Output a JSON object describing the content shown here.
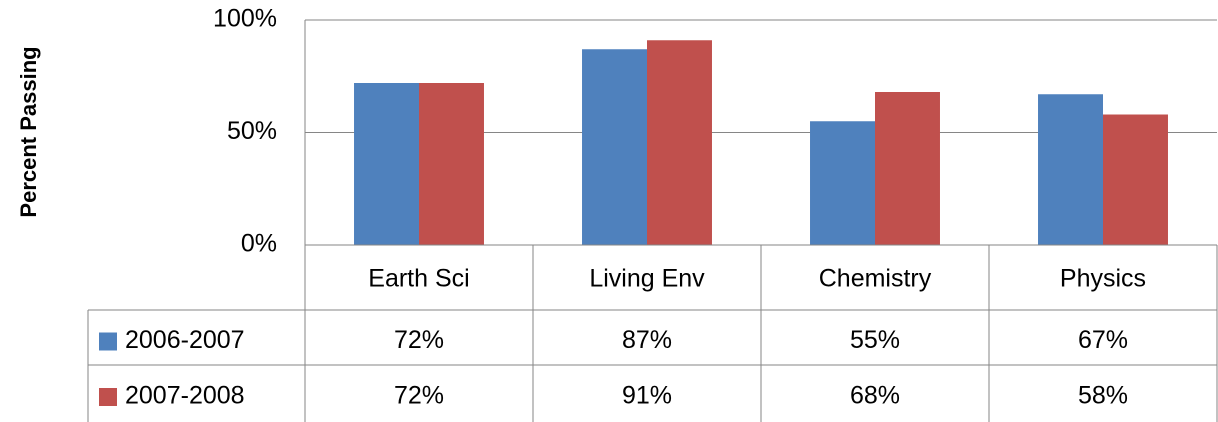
{
  "chart_data": {
    "type": "bar",
    "y_axis_label": "Percent Passing",
    "categories": [
      "Earth Sci",
      "Living Env",
      "Chemistry",
      "Physics"
    ],
    "series": [
      {
        "name": "2006-2007",
        "color": "#4f81bd",
        "values": [
          72,
          87,
          55,
          67
        ],
        "value_labels": [
          "72%",
          "87%",
          "55%",
          "67%"
        ]
      },
      {
        "name": "2007-2008",
        "color": "#c0504d",
        "values": [
          72,
          91,
          68,
          58
        ],
        "value_labels": [
          "72%",
          "91%",
          "68%",
          "58%"
        ]
      }
    ],
    "ylim": [
      0,
      100
    ],
    "yticks": [
      {
        "value": 0,
        "label": "0%"
      },
      {
        "value": 50,
        "label": "50%"
      },
      {
        "value": 100,
        "label": "100%"
      }
    ],
    "grid": true
  }
}
